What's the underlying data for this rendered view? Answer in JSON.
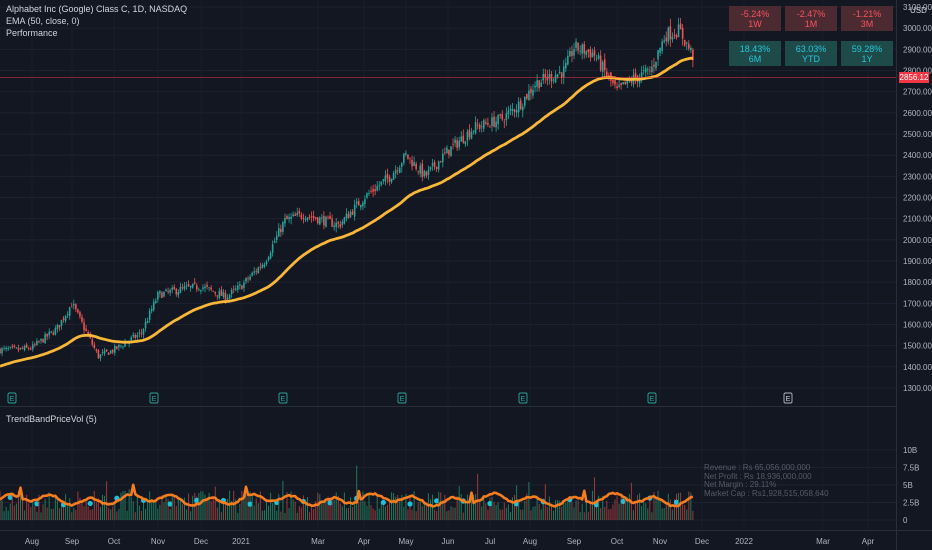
{
  "symbol_title": "Alphabet Inc (Google) Class C, 1D, NASDAQ",
  "indicator_ema": "EMA (50, close, 0)",
  "indicator_perf": "Performance",
  "indicator_vol": "TrendBandPriceVol (5)",
  "currency": "USD",
  "current_price": "2856.12",
  "performance": [
    {
      "value": "-5.24%",
      "period": "1W",
      "sign": "neg"
    },
    {
      "value": "-2.47%",
      "period": "1M",
      "sign": "neg"
    },
    {
      "value": "-1.21%",
      "period": "3M",
      "sign": "neg"
    },
    {
      "value": "18.43%",
      "period": "6M",
      "sign": "pos"
    },
    {
      "value": "63.03%",
      "period": "YTD",
      "sign": "pos"
    },
    {
      "value": "59.28%",
      "period": "1Y",
      "sign": "pos"
    }
  ],
  "fundamentals": [
    "Revenue : Rs 65,056,000,000",
    "Net Profit : Rs 18,936,000,000",
    "Net Margin : 29.11%",
    "Market Cap : Rs1,928,515,058,640"
  ],
  "price_axis": [
    "3100.00",
    "3000.00",
    "2900.00",
    "2800.00",
    "2700.00",
    "2600.00",
    "2500.00",
    "2400.00",
    "2300.00",
    "2200.00",
    "2100.00",
    "2000.00",
    "1900.00",
    "1800.00",
    "1700.00",
    "1600.00",
    "1500.00",
    "1400.00",
    "1300.00"
  ],
  "volume_axis": [
    "10B",
    "7.5B",
    "5B",
    "2.5B",
    "0"
  ],
  "time_axis": [
    "Aug",
    "Sep",
    "Oct",
    "Nov",
    "Dec",
    "2021",
    "Mar",
    "Apr",
    "May",
    "Jun",
    "Jul",
    "Aug",
    "Sep",
    "Oct",
    "Nov",
    "Dec",
    "2022",
    "Mar",
    "Apr"
  ],
  "earnings_marker": "E",
  "colors": {
    "background": "#131722",
    "up": "#26a69a",
    "down": "#ef5350",
    "ema": "#f9b73a",
    "vol_line": "#f57c1f",
    "dots": "#22c0d6"
  },
  "chart_data": {
    "type": "candlestick",
    "title": "Alphabet Inc (Google) Class C, 1D, NASDAQ",
    "anchors": [
      {
        "date": "2020-07-20",
        "close": 1480
      },
      {
        "date": "2020-08-01",
        "close": 1490
      },
      {
        "date": "2020-08-20",
        "close": 1580
      },
      {
        "date": "2020-09-01",
        "close": 1700
      },
      {
        "date": "2020-09-20",
        "close": 1450
      },
      {
        "date": "2020-10-01",
        "close": 1480
      },
      {
        "date": "2020-10-20",
        "close": 1560
      },
      {
        "date": "2020-11-01",
        "close": 1740
      },
      {
        "date": "2020-11-20",
        "close": 1770
      },
      {
        "date": "2020-12-01",
        "close": 1780
      },
      {
        "date": "2020-12-20",
        "close": 1730
      },
      {
        "date": "2021-01-01",
        "close": 1780
      },
      {
        "date": "2021-01-20",
        "close": 1900
      },
      {
        "date": "2021-02-05",
        "close": 2090
      },
      {
        "date": "2021-02-20",
        "close": 2120
      },
      {
        "date": "2021-03-15",
        "close": 2070
      },
      {
        "date": "2021-04-01",
        "close": 2200
      },
      {
        "date": "2021-04-20",
        "close": 2300
      },
      {
        "date": "2021-05-01",
        "close": 2400
      },
      {
        "date": "2021-05-15",
        "close": 2300
      },
      {
        "date": "2021-06-01",
        "close": 2420
      },
      {
        "date": "2021-06-20",
        "close": 2530
      },
      {
        "date": "2021-07-10",
        "close": 2570
      },
      {
        "date": "2021-07-25",
        "close": 2650
      },
      {
        "date": "2021-08-05",
        "close": 2740
      },
      {
        "date": "2021-08-25",
        "close": 2800
      },
      {
        "date": "2021-09-01",
        "close": 2910
      },
      {
        "date": "2021-09-15",
        "close": 2880
      },
      {
        "date": "2021-10-01",
        "close": 2700
      },
      {
        "date": "2021-10-10",
        "close": 2750
      },
      {
        "date": "2021-10-25",
        "close": 2800
      },
      {
        "date": "2021-11-05",
        "close": 2970
      },
      {
        "date": "2021-11-15",
        "close": 2990
      },
      {
        "date": "2021-11-26",
        "close": 2856
      }
    ],
    "ema_period": 50,
    "price_range": [
      1250,
      3150
    ]
  }
}
